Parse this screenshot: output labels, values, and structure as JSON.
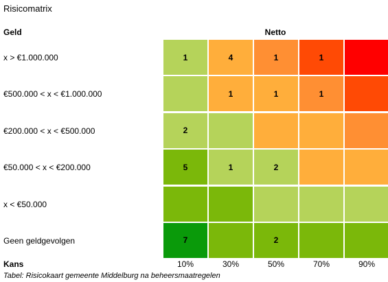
{
  "title": "Risicomatrix",
  "row_header": "Geld",
  "column_header": "Netto",
  "x_axis_label": "Kans",
  "caption": "Tabel: Risicokaart gemeente Middelburg na beheersmaatregelen",
  "columns": [
    "10%",
    "30%",
    "50%",
    "70%",
    "90%"
  ],
  "rows": [
    {
      "label": "x > €1.000.000",
      "cells": [
        {
          "value": "1",
          "color": "#b5d35a"
        },
        {
          "value": "4",
          "color": "#ffae3b"
        },
        {
          "value": "1",
          "color": "#ff8f33"
        },
        {
          "value": "1",
          "color": "#ff4a05"
        },
        {
          "value": "",
          "color": "#ff0000"
        }
      ]
    },
    {
      "label": "€500.000 < x < €1.000.000",
      "cells": [
        {
          "value": "",
          "color": "#b5d35a"
        },
        {
          "value": "1",
          "color": "#ffae3b"
        },
        {
          "value": "1",
          "color": "#ffae3b"
        },
        {
          "value": "1",
          "color": "#ff8f33"
        },
        {
          "value": "",
          "color": "#ff4a05"
        }
      ]
    },
    {
      "label": "€200.000 < x < €500.000",
      "cells": [
        {
          "value": "2",
          "color": "#b5d35a"
        },
        {
          "value": "",
          "color": "#b5d35a"
        },
        {
          "value": "",
          "color": "#ffae3b"
        },
        {
          "value": "",
          "color": "#ffae3b"
        },
        {
          "value": "",
          "color": "#ff8f33"
        }
      ]
    },
    {
      "label": "€50.000 < x < €200.000",
      "cells": [
        {
          "value": "5",
          "color": "#7bb80a"
        },
        {
          "value": "1",
          "color": "#b5d35a"
        },
        {
          "value": "2",
          "color": "#b5d35a"
        },
        {
          "value": "",
          "color": "#ffae3b"
        },
        {
          "value": "",
          "color": "#ffae3b"
        }
      ]
    },
    {
      "label": "x < €50.000",
      "cells": [
        {
          "value": "",
          "color": "#7bb80a"
        },
        {
          "value": "",
          "color": "#7bb80a"
        },
        {
          "value": "",
          "color": "#b5d35a"
        },
        {
          "value": "",
          "color": "#b5d35a"
        },
        {
          "value": "",
          "color": "#b5d35a"
        }
      ]
    },
    {
      "label": "Geen geldgevolgen",
      "cells": [
        {
          "value": "7",
          "color": "#0a9a0a"
        },
        {
          "value": "",
          "color": "#7bb80a"
        },
        {
          "value": "2",
          "color": "#7bb80a"
        },
        {
          "value": "",
          "color": "#7bb80a"
        },
        {
          "value": "",
          "color": "#7bb80a"
        }
      ]
    }
  ]
}
